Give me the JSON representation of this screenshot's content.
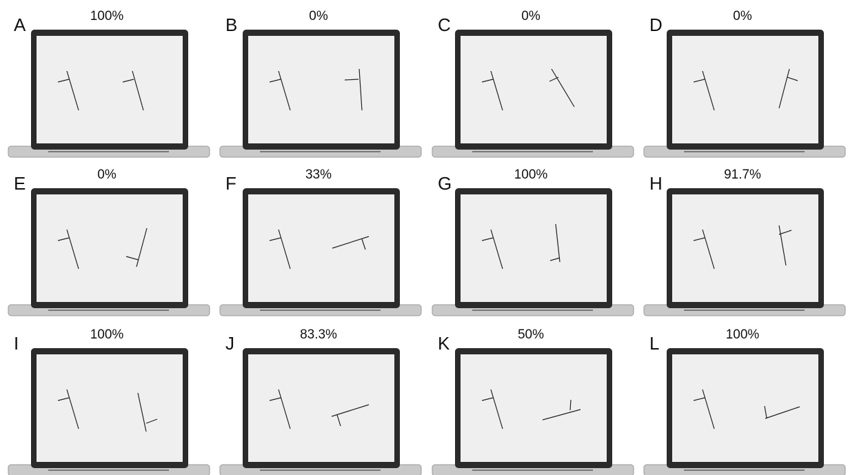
{
  "panels": [
    {
      "letter": "A",
      "score": "100%"
    },
    {
      "letter": "B",
      "score": "0%"
    },
    {
      "letter": "C",
      "score": "0%"
    },
    {
      "letter": "D",
      "score": "0%"
    },
    {
      "letter": "E",
      "score": "0%"
    },
    {
      "letter": "F",
      "score": "33%"
    },
    {
      "letter": "G",
      "score": "100%"
    },
    {
      "letter": "H",
      "score": "91.7%"
    },
    {
      "letter": "I",
      "score": "100%"
    },
    {
      "letter": "J",
      "score": "83.3%"
    },
    {
      "letter": "K",
      "score": "50%"
    },
    {
      "letter": "L",
      "score": "100%"
    }
  ]
}
